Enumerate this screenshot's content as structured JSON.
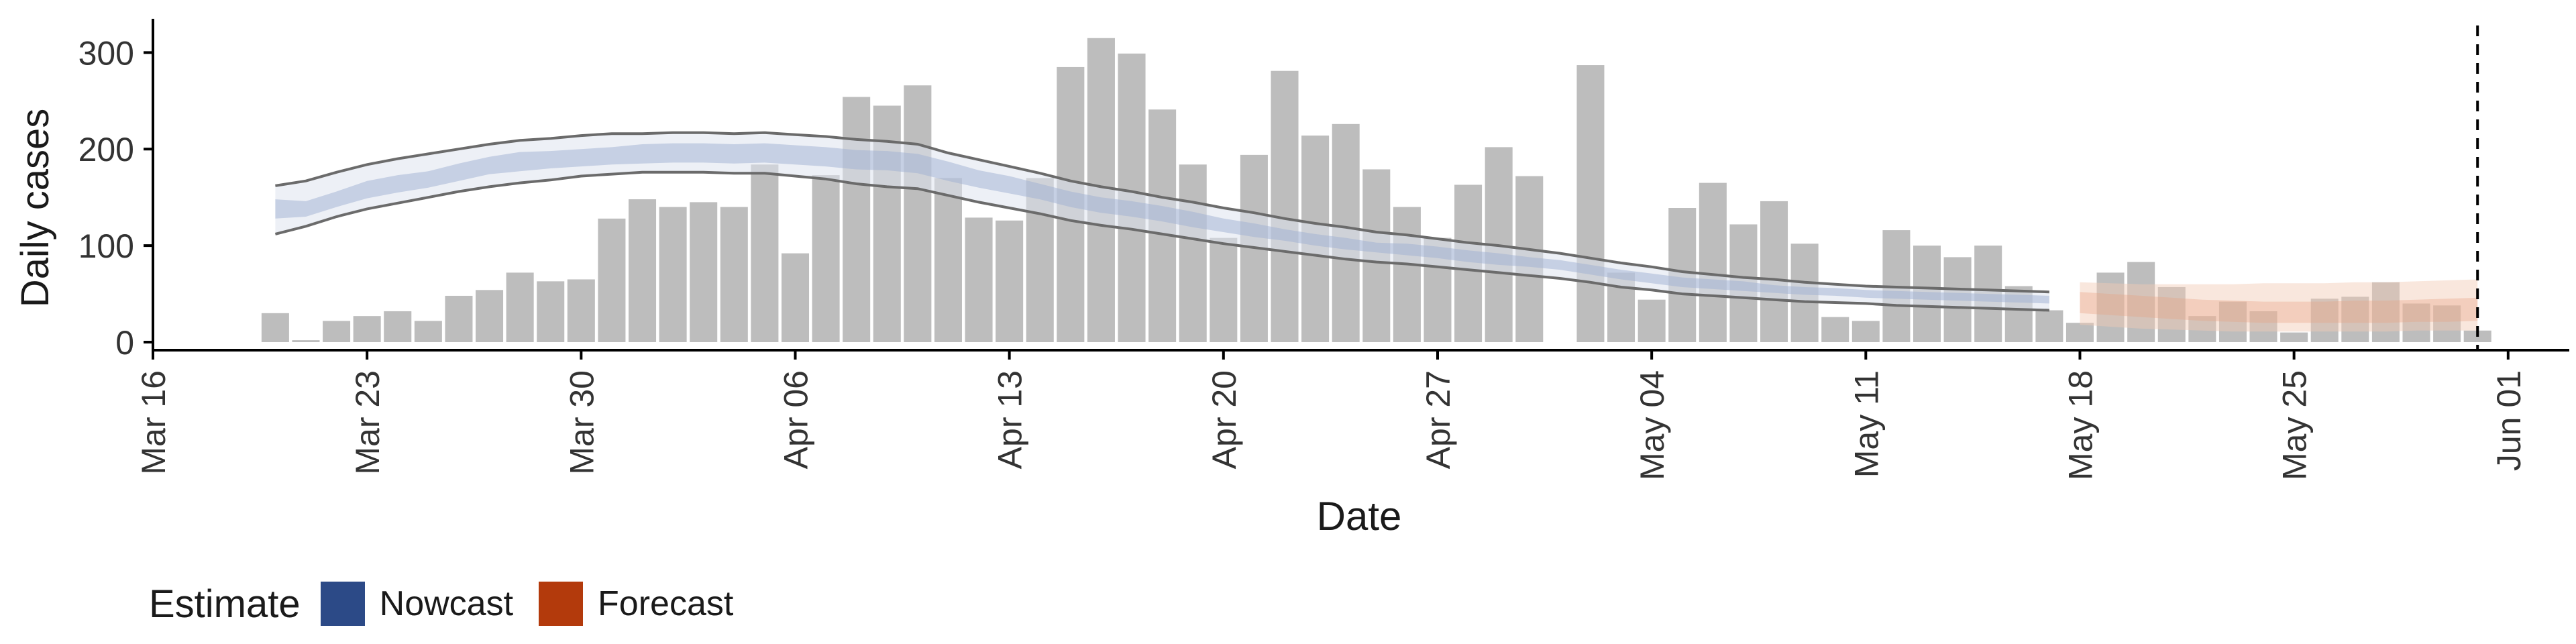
{
  "chart_data": {
    "type": "bar",
    "x_start": "2020-03-20",
    "x_end": "2020-05-31",
    "xlabel": "Date",
    "ylabel": "Daily cases",
    "xlim": [
      "2020-03-16",
      "2020-06-03"
    ],
    "ylim": [
      0,
      335
    ],
    "x_ticks": [
      "Mar 16",
      "Mar 23",
      "Mar 30",
      "Apr 06",
      "Apr 13",
      "Apr 20",
      "Apr 27",
      "May 04",
      "May 11",
      "May 18",
      "May 25",
      "Jun 01"
    ],
    "y_ticks": [
      "0",
      "100",
      "200",
      "300"
    ],
    "cases": [
      30,
      2,
      22,
      27,
      32,
      22,
      48,
      54,
      72,
      63,
      65,
      128,
      148,
      140,
      145,
      140,
      184,
      92,
      173,
      254,
      245,
      266,
      170,
      129,
      126,
      170,
      285,
      315,
      299,
      241,
      184,
      108,
      194,
      281,
      214,
      226,
      179,
      140,
      108,
      163,
      202,
      172,
      null,
      287,
      72,
      44,
      139,
      165,
      122,
      146,
      102,
      26,
      22,
      116,
      100,
      88,
      100,
      58,
      33,
      20,
      72,
      83,
      57,
      27,
      42,
      32,
      10,
      45,
      47,
      62,
      40,
      38,
      12
    ],
    "nowcast": {
      "name": "Nowcast",
      "color": "#2c4a87",
      "start": "2020-03-20",
      "median": [
        138,
        138,
        148,
        158,
        164,
        168,
        176,
        183,
        187,
        189,
        191,
        193,
        195,
        196,
        196,
        195,
        196,
        194,
        192,
        189,
        188,
        185,
        177,
        169,
        163,
        156,
        148,
        142,
        138,
        133,
        127,
        121,
        116,
        111,
        106,
        102,
        98,
        96,
        93,
        89,
        86,
        83,
        80,
        75,
        70,
        66,
        62,
        60,
        58,
        55,
        53,
        52,
        50,
        49,
        48,
        47,
        46,
        45,
        44
      ],
      "outer_lower": [
        112,
        120,
        130,
        138,
        144,
        150,
        156,
        161,
        165,
        168,
        172,
        174,
        176,
        176,
        176,
        175,
        175,
        172,
        169,
        164,
        161,
        159,
        152,
        145,
        139,
        133,
        126,
        121,
        117,
        112,
        107,
        102,
        98,
        94,
        90,
        86,
        83,
        81,
        78,
        75,
        72,
        69,
        66,
        62,
        57,
        54,
        50,
        48,
        46,
        44,
        42,
        41,
        40,
        38,
        37,
        36,
        35,
        34,
        33
      ],
      "outer_upper": [
        162,
        167,
        176,
        184,
        190,
        195,
        200,
        205,
        209,
        211,
        214,
        216,
        216,
        217,
        217,
        216,
        217,
        215,
        213,
        210,
        208,
        205,
        196,
        189,
        182,
        175,
        167,
        161,
        156,
        150,
        145,
        139,
        134,
        128,
        123,
        119,
        114,
        111,
        107,
        103,
        100,
        96,
        92,
        87,
        82,
        78,
        73,
        70,
        67,
        65,
        62,
        60,
        58,
        57,
        56,
        55,
        54,
        53,
        52
      ],
      "inner_lower": [
        128,
        130,
        140,
        149,
        155,
        160,
        167,
        174,
        177,
        180,
        182,
        184,
        185,
        186,
        186,
        185,
        186,
        184,
        182,
        179,
        178,
        175,
        167,
        160,
        154,
        148,
        140,
        134,
        130,
        125,
        119,
        114,
        109,
        105,
        100,
        96,
        93,
        90,
        87,
        83,
        80,
        78,
        75,
        70,
        65,
        61,
        57,
        55,
        53,
        51,
        49,
        48,
        46,
        45,
        44,
        43,
        42,
        41,
        40
      ],
      "inner_upper": [
        148,
        146,
        156,
        167,
        173,
        177,
        185,
        192,
        197,
        198,
        200,
        202,
        205,
        206,
        206,
        205,
        206,
        204,
        202,
        199,
        198,
        195,
        187,
        178,
        172,
        164,
        156,
        150,
        146,
        141,
        135,
        128,
        123,
        117,
        112,
        108,
        103,
        102,
        99,
        95,
        92,
        88,
        85,
        80,
        75,
        71,
        67,
        65,
        63,
        59,
        57,
        56,
        54,
        53,
        52,
        51,
        50,
        49,
        48
      ]
    },
    "forecast": {
      "name": "Forecast",
      "color": "#b33a0c",
      "start": "2020-05-18",
      "median": [
        40,
        38,
        36,
        34,
        32,
        31,
        30,
        30,
        30,
        30,
        30,
        31,
        31,
        32
      ],
      "inner_lower": [
        30,
        28,
        26,
        24,
        22,
        21,
        20,
        20,
        20,
        20,
        20,
        21,
        21,
        22
      ],
      "inner_upper": [
        52,
        50,
        48,
        46,
        44,
        43,
        42,
        42,
        42,
        43,
        43,
        44,
        45,
        46
      ],
      "outer_lower": [
        18,
        16,
        14,
        13,
        12,
        11,
        11,
        11,
        11,
        11,
        11,
        12,
        12,
        12
      ],
      "outer_upper": [
        62,
        61,
        60,
        60,
        60,
        60,
        61,
        61,
        61,
        62,
        62,
        63,
        64,
        65
      ]
    },
    "reference_line": "2020-05-31",
    "grid": false,
    "legend_position": "bottom-left"
  },
  "legend": {
    "title": "Estimate",
    "items": [
      {
        "label": "Nowcast",
        "color": "#2c4a87"
      },
      {
        "label": "Forecast",
        "color": "#b33a0c"
      }
    ]
  }
}
